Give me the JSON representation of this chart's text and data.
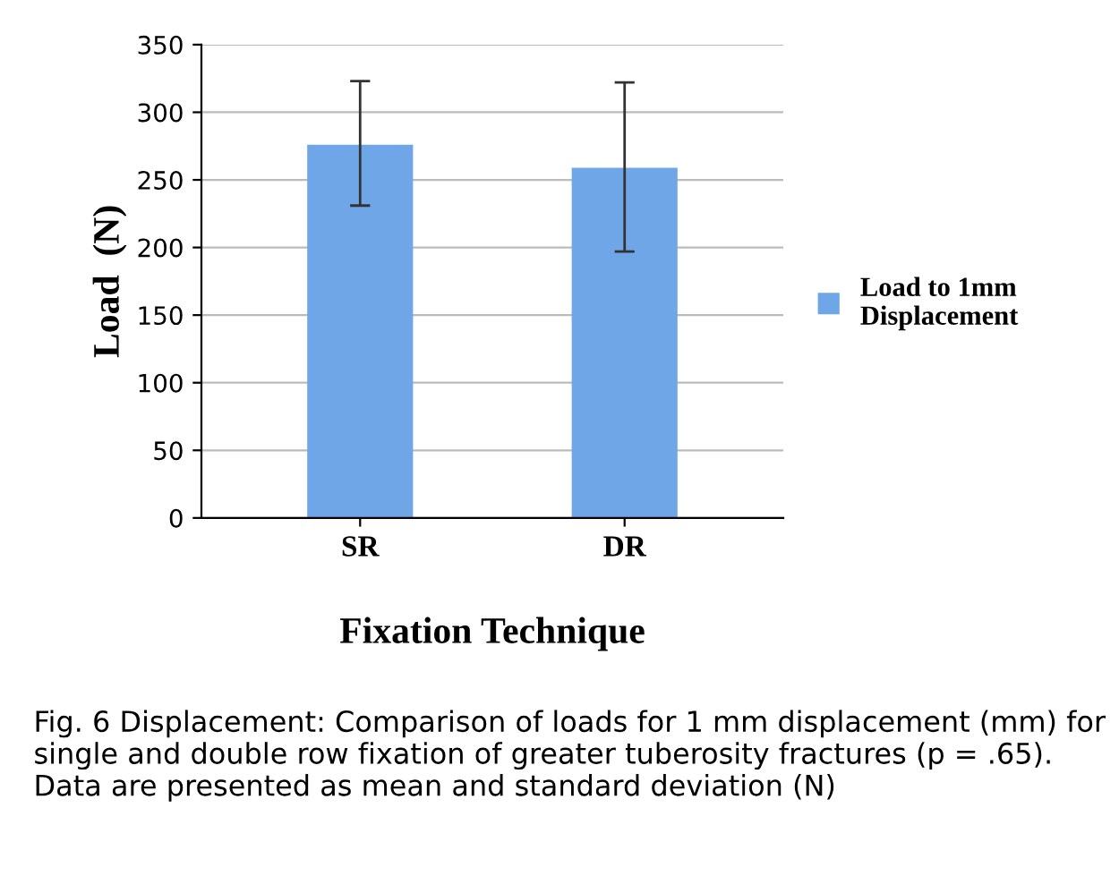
{
  "chart_data": {
    "type": "bar",
    "xlabel": "Fixation Technique",
    "ylabel": "Load  (N)",
    "categories": [
      "SR",
      "DR"
    ],
    "series": [
      {
        "name": "Load to 1mm Displacement",
        "color": "#6fa6e8",
        "values": [
          276,
          259
        ],
        "errors": [
          [
            231,
            323
          ],
          [
            197,
            322
          ]
        ]
      }
    ],
    "ylim": [
      0,
      350
    ],
    "yticks": [
      0,
      50,
      100,
      150,
      200,
      250,
      300,
      350
    ],
    "grid": "y",
    "legend": "right",
    "annotations": [
      "Fig. 6 Displacement: Comparison of loads for 1 mm displacement (mm) for single and double row fixation of greater tuberosity fractures (p = .65). Data are presented as mean and standard deviation (N)"
    ]
  }
}
